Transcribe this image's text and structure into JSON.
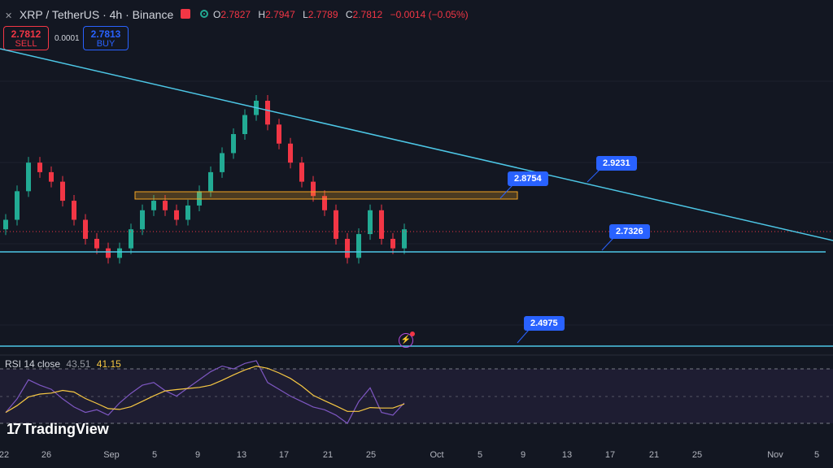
{
  "header": {
    "symbol": "XRP / TetherUS · 4h · Binance",
    "ohlc": [
      {
        "key": "O",
        "value": "2.7827"
      },
      {
        "key": "H",
        "value": "2.7947"
      },
      {
        "key": "L",
        "value": "2.7789"
      },
      {
        "key": "C",
        "value": "2.7812"
      }
    ],
    "change": "−0.0014 (−0.05%)",
    "colors": {
      "down": "#f23645",
      "up": "#22ab94"
    }
  },
  "trade": {
    "sell_price": "2.7812",
    "sell_label": "SELL",
    "spread": "0.0001",
    "buy_price": "2.7813",
    "buy_label": "BUY"
  },
  "annotations": {
    "top_resistance": "2.9231",
    "zone": "2.8754",
    "support": "2.7326",
    "lower_support": "2.4975"
  },
  "rsi": {
    "label": "RSI 14 close",
    "value": "43.51",
    "ma_value": "41.15"
  },
  "watermark": {
    "logo_mark": "17",
    "brand": "TradingView"
  },
  "x_axis": [
    "22",
    "26",
    "Sep",
    "5",
    "9",
    "13",
    "17",
    "21",
    "25",
    "Oct",
    "5",
    "9",
    "13",
    "17",
    "21",
    "25",
    "Nov",
    "5"
  ],
  "chart_data": {
    "type": "candlestick",
    "series": [
      {
        "name": "XRP / TetherUS",
        "values": [
          2.8,
          2.86,
          2.92,
          2.9,
          2.88,
          2.84,
          2.8,
          2.76,
          2.74,
          2.72,
          2.74,
          2.78,
          2.82,
          2.84,
          2.82,
          2.8,
          2.83,
          2.86,
          2.9,
          2.94,
          2.98,
          3.02,
          3.05,
          3.0,
          2.96,
          2.92,
          2.88,
          2.85,
          2.82,
          2.76,
          2.72,
          2.77,
          2.82,
          2.76,
          2.74,
          2.78
        ]
      }
    ],
    "rsi": [
      38,
      48,
      62,
      58,
      55,
      48,
      42,
      38,
      40,
      36,
      45,
      52,
      58,
      60,
      54,
      50,
      56,
      62,
      68,
      72,
      70,
      74,
      76,
      60,
      55,
      50,
      46,
      42,
      40,
      36,
      30,
      46,
      56,
      38,
      36,
      45
    ]
  }
}
